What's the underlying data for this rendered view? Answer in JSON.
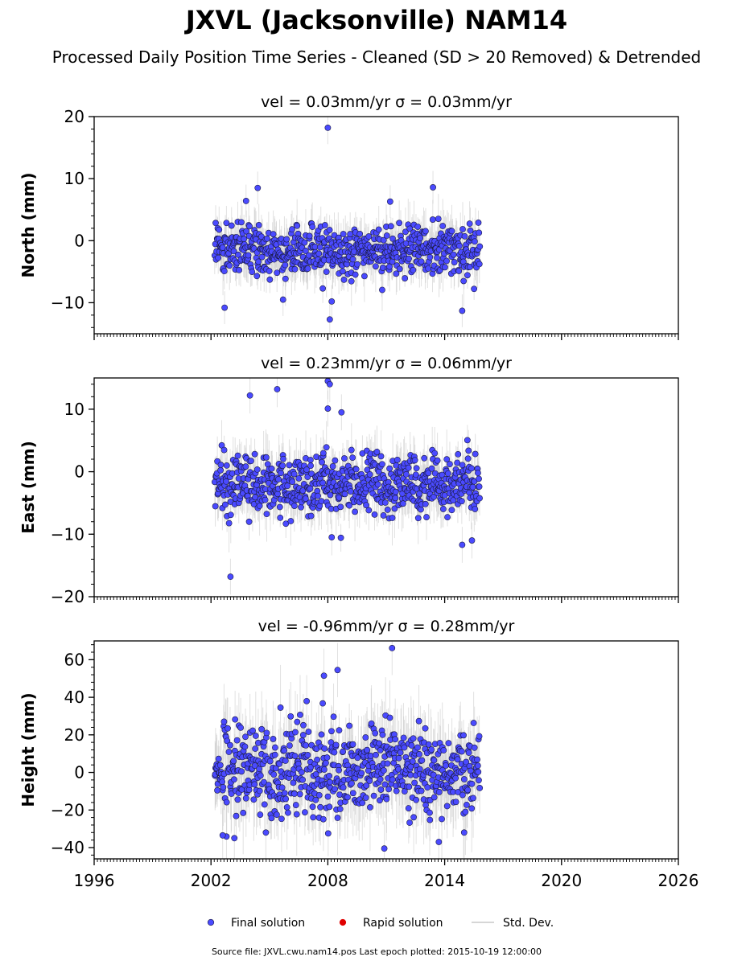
{
  "chart_data": {
    "type": "scatter",
    "title": "JXVL (Jacksonville) NAM14",
    "subtitle": "Processed Daily Position Time Series - Cleaned (SD > 20 Removed) & Detrended",
    "x_ticks": [
      "1996",
      "2002",
      "2008",
      "2014",
      "2020",
      "2026"
    ],
    "xlim": [
      1996,
      2026
    ],
    "data_span": [
      2002.2,
      2015.8
    ],
    "panels": [
      {
        "name": "north",
        "title": "vel = 0.03mm/yr   σ = 0.03mm/yr",
        "ylabel": "North (mm)",
        "ylim": [
          -15,
          20
        ],
        "yticks": [
          20,
          10,
          0,
          -10
        ],
        "ytick_labels": [
          "20",
          "10",
          "0",
          "−10"
        ],
        "center": -1.5,
        "spread": 2.2,
        "outliers": [
          [
            2008.0,
            18.2
          ],
          [
            2004.4,
            8.5
          ],
          [
            2013.4,
            8.6
          ],
          [
            2003.8,
            6.4
          ],
          [
            2011.2,
            6.3
          ],
          [
            2002.7,
            -10.8
          ],
          [
            2008.2,
            -9.8
          ],
          [
            2014.9,
            -11.3
          ],
          [
            2008.1,
            -12.7
          ],
          [
            2005.7,
            -9.5
          ]
        ]
      },
      {
        "name": "east",
        "title": "vel = 0.23mm/yr   σ = 0.06mm/yr",
        "ylabel": "East (mm)",
        "ylim": [
          -20,
          15
        ],
        "yticks": [
          10,
          0,
          -10,
          -20
        ],
        "ytick_labels": [
          "10",
          "0",
          "−10",
          "−20"
        ],
        "center": -2.0,
        "spread": 2.4,
        "outliers": [
          [
            2008.0,
            14.5
          ],
          [
            2008.1,
            14.0
          ],
          [
            2004.0,
            12.2
          ],
          [
            2005.4,
            13.2
          ],
          [
            2008.0,
            10.1
          ],
          [
            2008.7,
            9.5
          ],
          [
            2003.0,
            -16.8
          ],
          [
            2014.9,
            -11.7
          ],
          [
            2015.4,
            -11.0
          ],
          [
            2008.2,
            -10.5
          ]
        ]
      },
      {
        "name": "height",
        "title": "vel = -0.96mm/yr   σ = 0.28mm/yr",
        "ylabel": "Height (mm)",
        "ylim": [
          -46,
          70
        ],
        "yticks": [
          60,
          40,
          20,
          0,
          -20,
          -40
        ],
        "ytick_labels": [
          "60",
          "40",
          "20",
          "0",
          "−20",
          "−40"
        ],
        "center": 2.0,
        "spread": 12.0,
        "outliers": [
          [
            2011.3,
            66.2
          ],
          [
            2008.5,
            54.5
          ],
          [
            2007.8,
            51.5
          ],
          [
            2010.9,
            -40.5
          ],
          [
            2003.2,
            -35.0
          ],
          [
            2002.6,
            -33.5
          ],
          [
            2013.7,
            -37.0
          ],
          [
            2015.0,
            -32.0
          ]
        ]
      }
    ],
    "legend": {
      "placement": "bottom-center",
      "entries": [
        {
          "label": "Final solution",
          "color": "#4a4aff",
          "marker": "circle"
        },
        {
          "label": "Rapid solution",
          "color": "#e00000",
          "marker": "circle"
        },
        {
          "label": "Std. Dev.",
          "color": "#c8c8c8",
          "marker": "line"
        }
      ]
    },
    "footer": "Source file: JXVL.cwu.nam14.pos  Last epoch plotted: 2015-10-19 12:00:00",
    "colors": {
      "final": "#4a4aff",
      "rapid": "#e00000",
      "stddev": "#c8c8c8",
      "edge": "#1a1a40"
    }
  }
}
